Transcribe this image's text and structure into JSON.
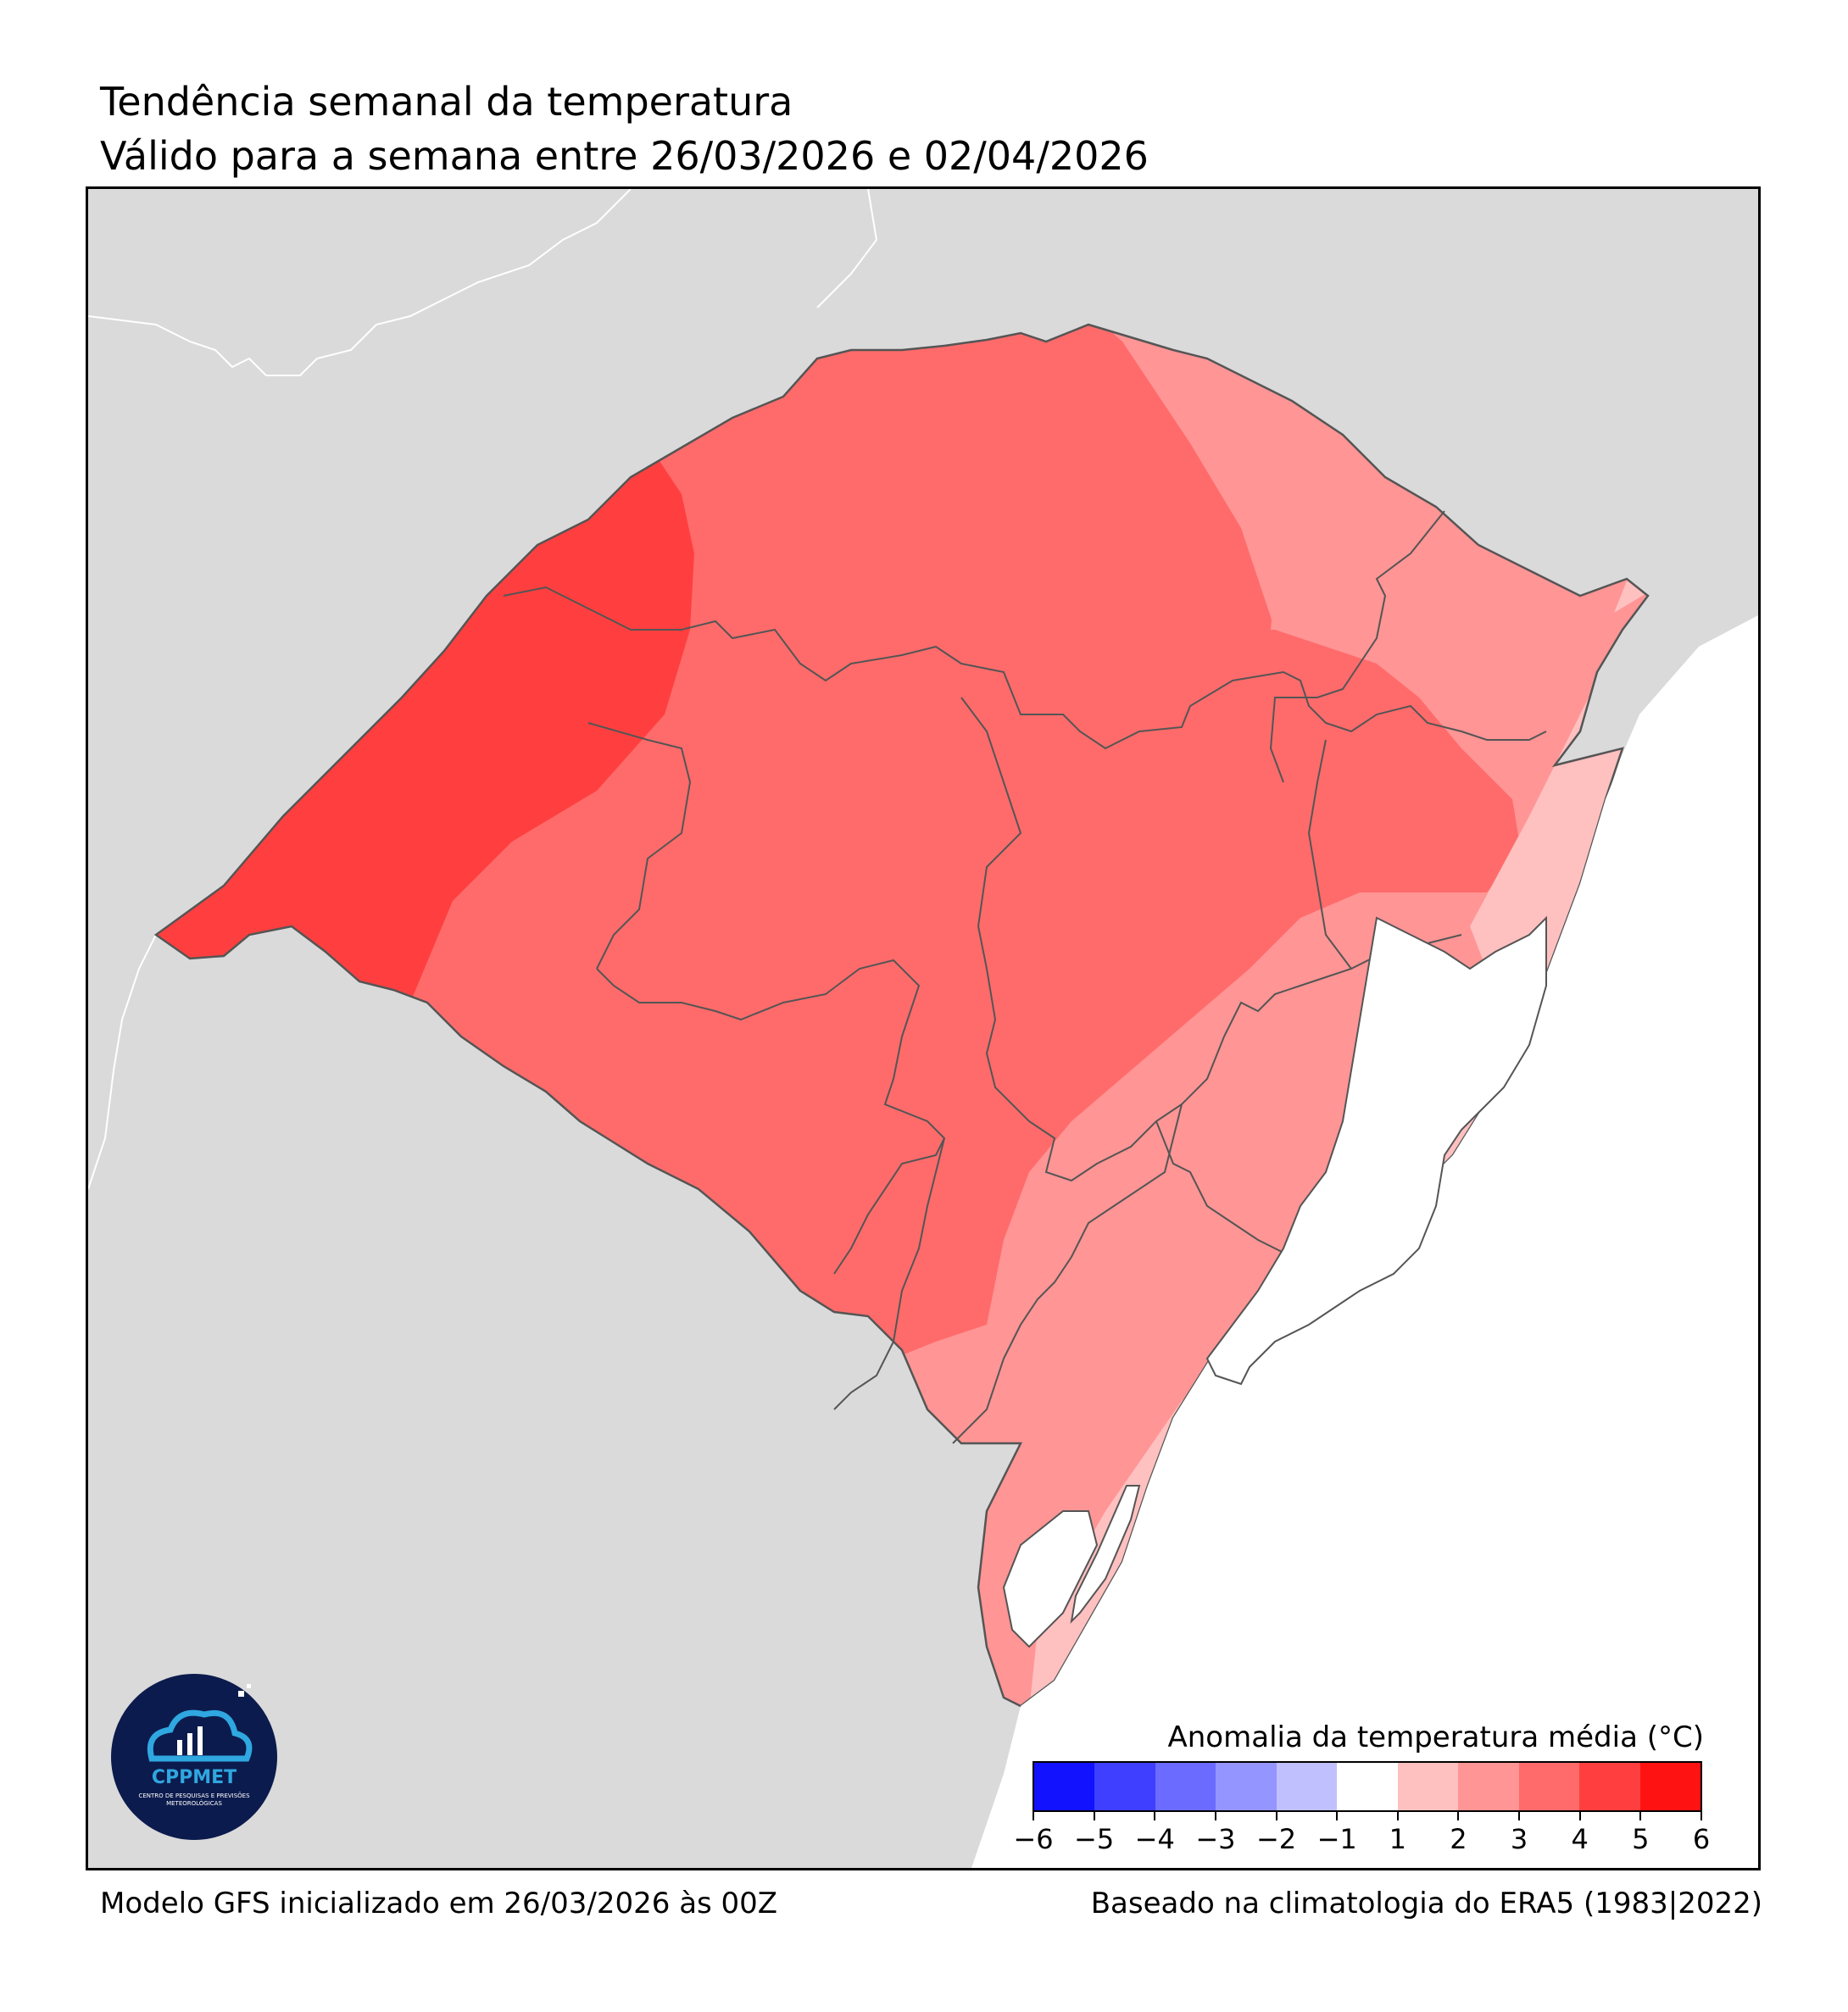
{
  "title": "Tendência semanal da temperatura",
  "subtitle": "Válido para a semana entre 26/03/2026 e 02/04/2026",
  "footer": {
    "model": "Modelo GFS inicializado em 26/03/2026 às 00Z",
    "climatology": "Baseado na climatologia do ERA5 (1983|2022)"
  },
  "map": {
    "region": "Rio Grande do Sul",
    "land_color": "#dadada",
    "water_color": "#ffffff",
    "boundary_color": "#555555",
    "anomaly_zones": [
      {
        "level": "4 a 5",
        "color": "#ff3f3f"
      },
      {
        "level": "3 a 4",
        "color": "#ff6b6b"
      },
      {
        "level": "2 a 3",
        "color": "#ff9595"
      },
      {
        "level": "1 a 2",
        "color": "#ffc0c0"
      }
    ]
  },
  "legend": {
    "title": "Anomalia da temperatura média (°C)",
    "bins": [
      {
        "from": -6,
        "to": -5,
        "color": "#1212ff"
      },
      {
        "from": -5,
        "to": -4,
        "color": "#3f3fff"
      },
      {
        "from": -4,
        "to": -3,
        "color": "#6b6bff"
      },
      {
        "from": -3,
        "to": -2,
        "color": "#9595ff"
      },
      {
        "from": -2,
        "to": -1,
        "color": "#c0c0ff"
      },
      {
        "from": -1,
        "to": 1,
        "color": "#ffffff"
      },
      {
        "from": 1,
        "to": 2,
        "color": "#ffc0c0"
      },
      {
        "from": 2,
        "to": 3,
        "color": "#ff9595"
      },
      {
        "from": 3,
        "to": 4,
        "color": "#ff6b6b"
      },
      {
        "from": 4,
        "to": 5,
        "color": "#ff3f3f"
      },
      {
        "from": 5,
        "to": 6,
        "color": "#ff1212"
      }
    ],
    "ticks": [
      "−6",
      "−5",
      "−4",
      "−3",
      "−2",
      "−1",
      "1",
      "2",
      "3",
      "4",
      "5",
      "6"
    ]
  },
  "logo": {
    "name": "CPPMET",
    "subtitle": "CENTRO DE PESQUISAS E PREVISÕES METEOROLÓGICAS"
  }
}
